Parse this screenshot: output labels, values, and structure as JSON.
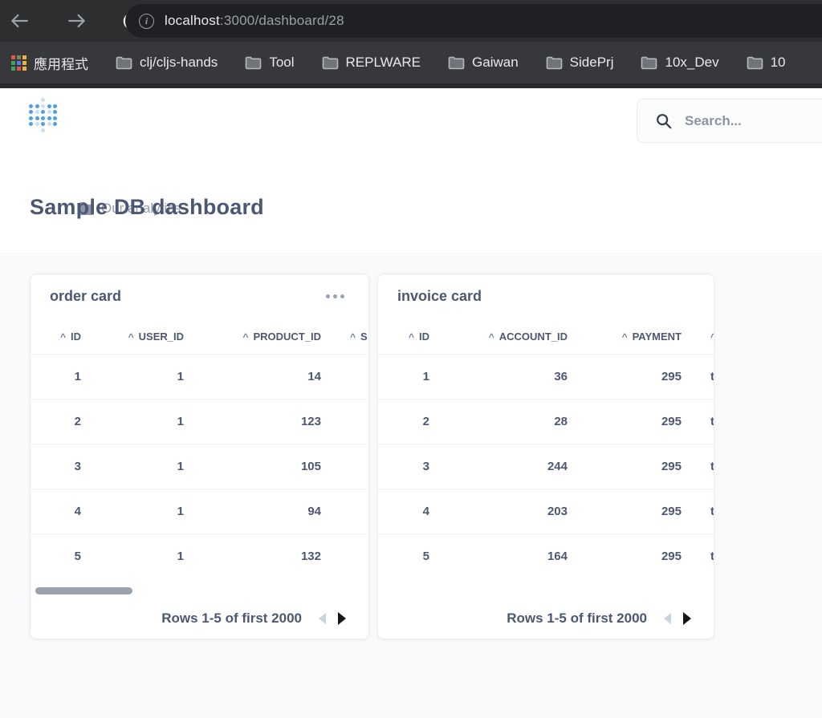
{
  "browser": {
    "url": {
      "host": "localhost",
      "rest": ":3000/dashboard/28"
    },
    "icons": {
      "back": "arrow-left",
      "forward": "arrow-right",
      "reload": "refresh",
      "site_info": "info-circle"
    }
  },
  "bookmarks": {
    "apps_label": "應用程式",
    "apps_icon_colors": [
      "#e0564a",
      "#7f8b4e",
      "#eeb03e",
      "#3fa25f",
      "#4f7fe8",
      "#eeb03e",
      "#3fa25f",
      "#e0564a",
      "#eeb03e"
    ],
    "folders": [
      "clj/cljs-hands",
      "Tool",
      "REPLWARE",
      "Gaiwan",
      "SidePrj",
      "10x_Dev",
      "10"
    ]
  },
  "metabase_header": {
    "breadcrumb": "Our analytics",
    "search_placeholder": "Search..."
  },
  "page": {
    "title": "Sample DB dashboard"
  },
  "cards": [
    {
      "title": "order card",
      "has_menu": true,
      "columns": [
        "ID",
        "USER_ID",
        "PRODUCT_ID",
        "S"
      ],
      "rows": [
        [
          "1",
          "1",
          "14",
          ""
        ],
        [
          "2",
          "1",
          "123",
          ""
        ],
        [
          "3",
          "1",
          "105",
          ""
        ],
        [
          "4",
          "1",
          "94",
          ""
        ],
        [
          "5",
          "1",
          "132",
          ""
        ]
      ],
      "footer": "Rows 1-5 of first 2000"
    },
    {
      "title": "invoice card",
      "has_menu": false,
      "columns": [
        "ID",
        "ACCOUNT_ID",
        "PAYMENT",
        ""
      ],
      "rows": [
        [
          "1",
          "36",
          "295",
          "t"
        ],
        [
          "2",
          "28",
          "295",
          "t"
        ],
        [
          "3",
          "244",
          "295",
          "t"
        ],
        [
          "4",
          "203",
          "295",
          "t"
        ],
        [
          "5",
          "164",
          "295",
          "t"
        ]
      ],
      "footer": "Rows 1-5 of first 2000"
    }
  ],
  "colors": {
    "brand_blue": "#509EE3",
    "navy_text": "#4C5773",
    "muted_text": "#969eae",
    "dashboard_bg": "#f9fafb",
    "topbar_bg": "#2d2e30",
    "bookmarks_bg": "#37383b",
    "url_pill_bg": "#1f2023"
  }
}
